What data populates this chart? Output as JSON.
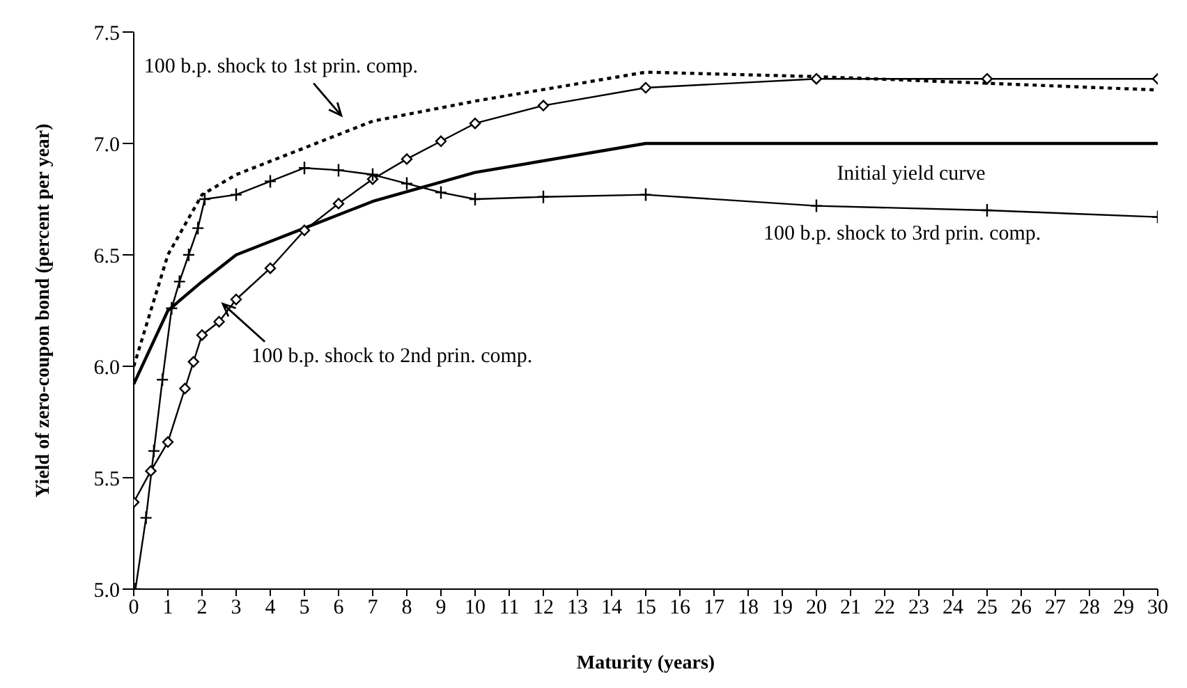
{
  "chart_data": {
    "type": "line",
    "xlabel": "Maturity (years)",
    "ylabel": "Yield of  zero-coupon bond (percent per year)",
    "xlim": [
      0,
      30
    ],
    "xticks": [
      0,
      1,
      2,
      3,
      4,
      5,
      6,
      7,
      8,
      9,
      10,
      11,
      12,
      13,
      14,
      15,
      16,
      17,
      18,
      19,
      20,
      21,
      22,
      23,
      24,
      25,
      26,
      27,
      28,
      29,
      30
    ],
    "ylim": [
      5,
      7.5
    ],
    "yticks": [
      {
        "value": 5,
        "label": "5.0"
      },
      {
        "value": 5.5,
        "label": "5.5"
      },
      {
        "value": 6,
        "label": "6.0"
      },
      {
        "value": 6.5,
        "label": "6.5"
      },
      {
        "value": 7,
        "label": "7.0"
      },
      {
        "value": 7.5,
        "label": "7.5"
      }
    ],
    "series": [
      {
        "name": "Initial yield curve",
        "color": "#000000",
        "marker": "none",
        "line_style": "solid",
        "x": [
          0,
          1,
          2,
          3,
          4,
          5,
          7,
          10,
          15,
          30
        ],
        "values": [
          5.92,
          6.25,
          6.38,
          6.5,
          6.56,
          6.62,
          6.74,
          6.87,
          7.0,
          7.0
        ]
      },
      {
        "name": "100 b.p. shock to 1st prin. comp.",
        "color": "#000000",
        "marker": "none",
        "line_style": "dotted",
        "x": [
          0,
          1,
          2,
          3,
          5,
          7,
          10,
          15,
          20,
          25,
          30
        ],
        "values": [
          6.0,
          6.5,
          6.77,
          6.86,
          6.98,
          7.1,
          7.19,
          7.32,
          7.3,
          7.27,
          7.24
        ]
      },
      {
        "name": "100 b.p. shock to 2nd prin. comp.",
        "color": "#000000",
        "marker": "diamond",
        "line_style": "solid",
        "x": [
          0,
          0.5,
          1,
          1.5,
          1.75,
          2,
          2.5,
          3,
          4,
          5,
          6,
          7,
          8,
          9,
          10,
          12,
          15,
          20,
          25,
          30
        ],
        "values": [
          5.39,
          5.53,
          5.66,
          5.9,
          6.02,
          6.14,
          6.2,
          6.3,
          6.44,
          6.61,
          6.73,
          6.84,
          6.93,
          7.01,
          7.09,
          7.17,
          7.25,
          7.29,
          7.29,
          7.29
        ]
      },
      {
        "name": "100 b.p. shock to 3rd prin. comp.",
        "color": "#000000",
        "marker": "cross",
        "line_style": "solid",
        "x": [
          0.05,
          0.36,
          0.59,
          0.84,
          1.11,
          1.34,
          1.61,
          1.88,
          2.08,
          3,
          4,
          5,
          6,
          7,
          8,
          9,
          10,
          12,
          15,
          20,
          25,
          30
        ],
        "values": [
          5.0,
          5.32,
          5.62,
          5.94,
          6.26,
          6.38,
          6.5,
          6.62,
          6.75,
          6.77,
          6.83,
          6.89,
          6.88,
          6.86,
          6.82,
          6.78,
          6.75,
          6.76,
          6.77,
          6.72,
          6.7,
          6.67
        ]
      }
    ]
  }
}
